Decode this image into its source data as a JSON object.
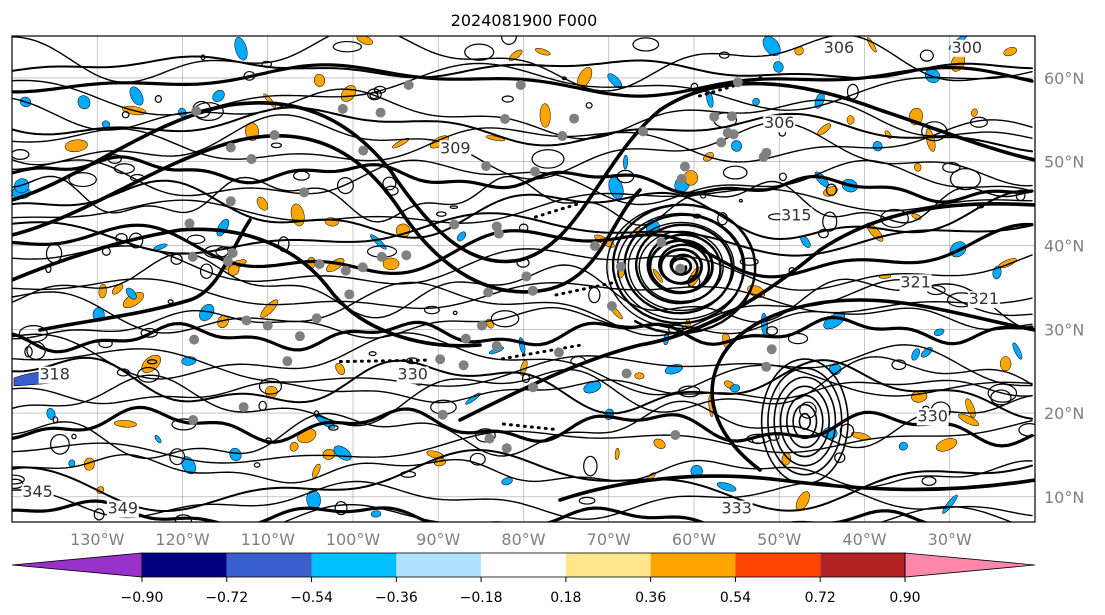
{
  "title": "2024081900 F000",
  "map": {
    "lon_ticks": [
      "130°W",
      "120°W",
      "110°W",
      "100°W",
      "90°W",
      "80°W",
      "70°W",
      "60°W",
      "50°W",
      "40°W",
      "30°W"
    ],
    "lat_ticks": [
      "60°N",
      "50°N",
      "40°N",
      "30°N",
      "20°N",
      "10°N"
    ],
    "lon_values": [
      -130,
      -120,
      -110,
      -100,
      -90,
      -80,
      -70,
      -60,
      -50,
      -40,
      -30
    ],
    "lat_values": [
      60,
      50,
      40,
      30,
      20,
      10
    ],
    "extent": {
      "lon_min": -140,
      "lon_max": -20,
      "lat_min": 7,
      "lat_max": 65
    },
    "contour_labels": [
      {
        "text": "300",
        "lon": -28,
        "lat": 63
      },
      {
        "text": "306",
        "lon": -43,
        "lat": 63
      },
      {
        "text": "306",
        "lon": -50,
        "lat": 54
      },
      {
        "text": "309",
        "lon": -88,
        "lat": 51
      },
      {
        "text": "315",
        "lon": -48,
        "lat": 43
      },
      {
        "text": "321",
        "lon": -26,
        "lat": 33
      },
      {
        "text": "321",
        "lon": -34,
        "lat": 35
      },
      {
        "text": "330",
        "lon": -93,
        "lat": 24
      },
      {
        "text": "330",
        "lon": -32,
        "lat": 19
      },
      {
        "text": "318",
        "lon": -135,
        "lat": 24
      },
      {
        "text": "345",
        "lon": -137,
        "lat": 10
      },
      {
        "text": "349",
        "lon": -127,
        "lat": 8
      },
      {
        "text": "333",
        "lon": -55,
        "lat": 8
      }
    ]
  },
  "colorbar": {
    "tick_labels": [
      "−0.90",
      "−0.72",
      "−0.54",
      "−0.36",
      "−0.18",
      "0.18",
      "0.36",
      "0.54",
      "0.72",
      "0.90"
    ],
    "tick_values": [
      -0.9,
      -0.72,
      -0.54,
      -0.36,
      -0.18,
      0.18,
      0.36,
      0.54,
      0.72,
      0.9
    ],
    "under_color": "#9932cc",
    "over_color": "#ff88aa",
    "colors": [
      "#9932cc",
      "#000080",
      "#3a5fcd",
      "#00bfff",
      "#b0e2ff",
      "#ffffff",
      "#ffe68a",
      "#ffa500",
      "#ff4500",
      "#b22222",
      "#ff88aa"
    ]
  },
  "features": {
    "contour_color": "#000000",
    "grid_color": "#808080",
    "negative_fill": "#00aaff",
    "positive_fill": "#ffa500",
    "dots_color": "#808080"
  }
}
